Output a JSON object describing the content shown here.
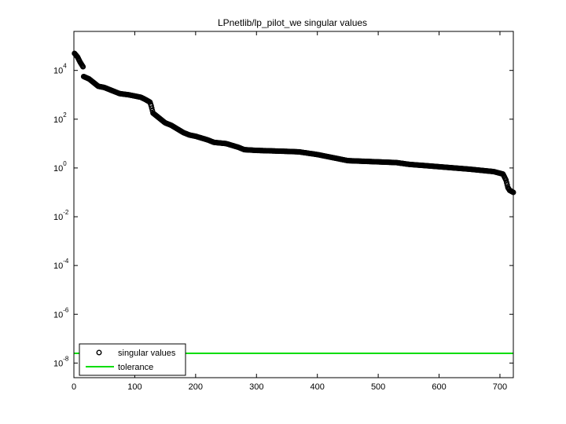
{
  "chart_data": {
    "type": "scatter",
    "title": "LPnetlib/lp_pilot_we singular values",
    "xlabel": "",
    "ylabel": "",
    "xlim": [
      0,
      722
    ],
    "ylim_log10": [
      -8.6,
      5.6
    ],
    "y_scale": "log",
    "grid": false,
    "legend_position": "bottom-left",
    "x_ticks": [
      "0",
      "100",
      "200",
      "300",
      "400",
      "500",
      "600",
      "700"
    ],
    "y_ticks": [
      {
        "base": "10",
        "exp": "4",
        "value": 4
      },
      {
        "base": "10",
        "exp": "2",
        "value": 2
      },
      {
        "base": "10",
        "exp": "0",
        "value": 0
      },
      {
        "base": "10",
        "exp": "-2",
        "value": -2
      },
      {
        "base": "10",
        "exp": "-4",
        "value": -4
      },
      {
        "base": "10",
        "exp": "-6",
        "value": -6
      },
      {
        "base": "10",
        "exp": "-8",
        "value": -8
      }
    ],
    "series": [
      {
        "name": "singular values",
        "marker": "circle",
        "color": "#000000",
        "profile_index_log10": [
          [
            1,
            4.7
          ],
          [
            6,
            4.55
          ],
          [
            10,
            4.35
          ],
          [
            15,
            4.15
          ],
          [
            16,
            3.75
          ],
          [
            25,
            3.65
          ],
          [
            30,
            3.55
          ],
          [
            40,
            3.35
          ],
          [
            50,
            3.3
          ],
          [
            60,
            3.2
          ],
          [
            75,
            3.05
          ],
          [
            90,
            3.0
          ],
          [
            100,
            2.95
          ],
          [
            110,
            2.9
          ],
          [
            118,
            2.8
          ],
          [
            125,
            2.7
          ],
          [
            127,
            2.55
          ],
          [
            130,
            2.25
          ],
          [
            140,
            2.05
          ],
          [
            150,
            1.85
          ],
          [
            160,
            1.75
          ],
          [
            170,
            1.6
          ],
          [
            180,
            1.45
          ],
          [
            190,
            1.35
          ],
          [
            200,
            1.3
          ],
          [
            220,
            1.15
          ],
          [
            230,
            1.05
          ],
          [
            250,
            1.0
          ],
          [
            270,
            0.85
          ],
          [
            280,
            0.75
          ],
          [
            300,
            0.72
          ],
          [
            350,
            0.68
          ],
          [
            370,
            0.66
          ],
          [
            400,
            0.55
          ],
          [
            430,
            0.4
          ],
          [
            450,
            0.3
          ],
          [
            500,
            0.25
          ],
          [
            530,
            0.22
          ],
          [
            550,
            0.15
          ],
          [
            600,
            0.05
          ],
          [
            650,
            -0.05
          ],
          [
            690,
            -0.15
          ],
          [
            705,
            -0.25
          ],
          [
            710,
            -0.5
          ],
          [
            713,
            -0.8
          ],
          [
            716,
            -0.92
          ],
          [
            722,
            -1.0
          ]
        ],
        "count": 722
      },
      {
        "name": "tolerance",
        "marker": "line",
        "color": "#00dd00",
        "value_log10": -7.6
      }
    ]
  }
}
